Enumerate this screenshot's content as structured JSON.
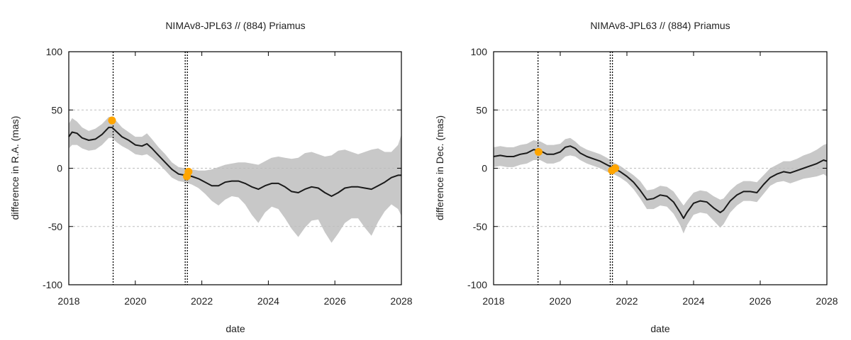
{
  "colors": {
    "line": "#1a1a1a",
    "band": "#c8c8c8",
    "points": "#ffa500",
    "grid": "#bdbdbd",
    "axis": "#000000"
  },
  "chart_data": [
    {
      "type": "line",
      "title": "NIMAv8-JPL63 // (884) Priamus",
      "xlabel": "date",
      "ylabel": "difference in R.A. (mas)",
      "xlim": [
        "2018-01-01",
        "2028-01-01"
      ],
      "ylim": [
        -100,
        100
      ],
      "xticks": [
        "2018",
        "2020",
        "2022",
        "2024",
        "2026",
        "2028"
      ],
      "yticks": [
        "-100",
        "-50",
        "0",
        "50",
        "100"
      ],
      "grid": true,
      "vlines": [
        "2019-05-01",
        "2021-07-01",
        "2021-07-25"
      ],
      "series": [
        {
          "kind": "line",
          "x": [
            "2018.0",
            "2018.1",
            "2018.25",
            "2018.4",
            "2018.6",
            "2018.8",
            "2019.0",
            "2019.2",
            "2019.3",
            "2019.45",
            "2019.6",
            "2019.8",
            "2020.0",
            "2020.2",
            "2020.35",
            "2020.5",
            "2020.7",
            "2020.9",
            "2021.1",
            "2021.3",
            "2021.5",
            "2021.7",
            "2021.9",
            "2022.1",
            "2022.3",
            "2022.5",
            "2022.7",
            "2022.9",
            "2023.1",
            "2023.3",
            "2023.5",
            "2023.7",
            "2023.9",
            "2024.1",
            "2024.3",
            "2024.5",
            "2024.7",
            "2024.9",
            "2025.1",
            "2025.3",
            "2025.5",
            "2025.7",
            "2025.9",
            "2026.1",
            "2026.3",
            "2026.5",
            "2026.7",
            "2026.9",
            "2027.1",
            "2027.3",
            "2027.5",
            "2027.7",
            "2027.9",
            "2028.0"
          ],
          "y": [
            27,
            31,
            30,
            26,
            24,
            25,
            29,
            35,
            35,
            31,
            27,
            24,
            20,
            19,
            21,
            17,
            11,
            5,
            -1,
            -5,
            -6,
            -7,
            -9,
            -12,
            -15,
            -15,
            -12,
            -11,
            -11,
            -13,
            -16,
            -18,
            -15,
            -13,
            -13,
            -16,
            -20,
            -21,
            -18,
            -16,
            -17,
            -21,
            -24,
            -21,
            -17,
            -16,
            -16,
            -17,
            -18,
            -15,
            -12,
            -8,
            -6,
            -6
          ]
        },
        {
          "kind": "band",
          "x": [
            "2018.0",
            "2018.1",
            "2018.25",
            "2018.4",
            "2018.6",
            "2018.8",
            "2019.0",
            "2019.2",
            "2019.3",
            "2019.45",
            "2019.6",
            "2019.8",
            "2020.0",
            "2020.2",
            "2020.35",
            "2020.5",
            "2020.7",
            "2020.9",
            "2021.1",
            "2021.3",
            "2021.5",
            "2021.7",
            "2021.9",
            "2022.1",
            "2022.3",
            "2022.5",
            "2022.7",
            "2022.9",
            "2023.1",
            "2023.3",
            "2023.5",
            "2023.7",
            "2023.9",
            "2024.1",
            "2024.3",
            "2024.5",
            "2024.7",
            "2024.9",
            "2025.1",
            "2025.3",
            "2025.5",
            "2025.7",
            "2025.9",
            "2026.1",
            "2026.3",
            "2026.5",
            "2026.7",
            "2026.9",
            "2027.1",
            "2027.3",
            "2027.5",
            "2027.7",
            "2027.9",
            "2028.0"
          ],
          "upper": [
            38,
            43,
            40,
            35,
            32,
            34,
            38,
            44,
            44,
            40,
            35,
            31,
            27,
            27,
            30,
            25,
            18,
            12,
            5,
            1,
            0,
            -1,
            -2,
            -2,
            -1,
            1,
            3,
            4,
            5,
            5,
            4,
            3,
            6,
            9,
            10,
            9,
            8,
            9,
            13,
            14,
            12,
            10,
            11,
            15,
            16,
            14,
            12,
            14,
            16,
            17,
            14,
            14,
            20,
            29
          ],
          "lower": [
            17,
            20,
            20,
            17,
            15,
            16,
            20,
            26,
            26,
            22,
            19,
            16,
            12,
            11,
            12,
            9,
            4,
            -2,
            -8,
            -11,
            -12,
            -14,
            -17,
            -22,
            -28,
            -32,
            -27,
            -24,
            -25,
            -31,
            -40,
            -47,
            -38,
            -33,
            -35,
            -43,
            -52,
            -59,
            -51,
            -45,
            -44,
            -55,
            -64,
            -56,
            -47,
            -43,
            -43,
            -51,
            -58,
            -46,
            -37,
            -31,
            -35,
            -41
          ]
        },
        {
          "kind": "points",
          "x": [
            "2019.3",
            "2021.55",
            "2021.6"
          ],
          "y": [
            41,
            -7,
            -3
          ]
        }
      ]
    },
    {
      "type": "line",
      "title": "NIMAv8-JPL63 // (884) Priamus",
      "xlabel": "date",
      "ylabel": "difference in Dec. (mas)",
      "xlim": [
        "2018-01-01",
        "2028-01-01"
      ],
      "ylim": [
        -100,
        100
      ],
      "xticks": [
        "2018",
        "2020",
        "2022",
        "2024",
        "2026",
        "2028"
      ],
      "yticks": [
        "-100",
        "-50",
        "0",
        "50",
        "100"
      ],
      "grid": true,
      "vlines": [
        "2019-05-01",
        "2021-07-01",
        "2021-07-25"
      ],
      "series": [
        {
          "kind": "line",
          "x": [
            "2018.0",
            "2018.2",
            "2018.4",
            "2018.6",
            "2018.8",
            "2019.0",
            "2019.2",
            "2019.4",
            "2019.6",
            "2019.8",
            "2020.0",
            "2020.15",
            "2020.3",
            "2020.45",
            "2020.6",
            "2020.8",
            "2021.0",
            "2021.2",
            "2021.4",
            "2021.6",
            "2021.8",
            "2022.0",
            "2022.2",
            "2022.4",
            "2022.6",
            "2022.8",
            "2023.0",
            "2023.2",
            "2023.4",
            "2023.6",
            "2023.7",
            "2023.8",
            "2024.0",
            "2024.2",
            "2024.4",
            "2024.6",
            "2024.8",
            "2024.9",
            "2025.1",
            "2025.3",
            "2025.5",
            "2025.7",
            "2025.9",
            "2026.1",
            "2026.3",
            "2026.5",
            "2026.7",
            "2026.9",
            "2027.1",
            "2027.3",
            "2027.5",
            "2027.7",
            "2027.9",
            "2028.0"
          ],
          "y": [
            10,
            11,
            10,
            10,
            12,
            13,
            16,
            15,
            12,
            12,
            14,
            18,
            19,
            17,
            13,
            10,
            8,
            6,
            3,
            0,
            -3,
            -7,
            -12,
            -19,
            -27,
            -26,
            -23,
            -24,
            -29,
            -38,
            -43,
            -38,
            -30,
            -28,
            -29,
            -34,
            -38,
            -36,
            -28,
            -23,
            -20,
            -20,
            -21,
            -14,
            -8,
            -5,
            -3,
            -4,
            -2,
            0,
            2,
            4,
            7,
            6
          ]
        },
        {
          "kind": "band",
          "x": [
            "2018.0",
            "2018.2",
            "2018.4",
            "2018.6",
            "2018.8",
            "2019.0",
            "2019.2",
            "2019.4",
            "2019.6",
            "2019.8",
            "2020.0",
            "2020.15",
            "2020.3",
            "2020.45",
            "2020.6",
            "2020.8",
            "2021.0",
            "2021.2",
            "2021.4",
            "2021.6",
            "2021.8",
            "2022.0",
            "2022.2",
            "2022.4",
            "2022.6",
            "2022.8",
            "2023.0",
            "2023.2",
            "2023.4",
            "2023.6",
            "2023.7",
            "2023.8",
            "2024.0",
            "2024.2",
            "2024.4",
            "2024.6",
            "2024.8",
            "2024.9",
            "2025.1",
            "2025.3",
            "2025.5",
            "2025.7",
            "2025.9",
            "2026.1",
            "2026.3",
            "2026.5",
            "2026.7",
            "2026.9",
            "2027.1",
            "2027.3",
            "2027.5",
            "2027.7",
            "2027.9",
            "2028.0"
          ],
          "upper": [
            18,
            19,
            18,
            18,
            20,
            21,
            24,
            23,
            20,
            20,
            21,
            25,
            26,
            23,
            19,
            16,
            14,
            12,
            9,
            5,
            2,
            -2,
            -6,
            -11,
            -19,
            -18,
            -15,
            -16,
            -20,
            -28,
            -32,
            -28,
            -21,
            -19,
            -20,
            -24,
            -27,
            -26,
            -19,
            -14,
            -11,
            -11,
            -12,
            -6,
            0,
            3,
            6,
            6,
            8,
            11,
            13,
            16,
            20,
            21
          ],
          "lower": [
            1,
            2,
            1,
            1,
            3,
            4,
            7,
            7,
            4,
            4,
            6,
            10,
            11,
            10,
            7,
            4,
            2,
            0,
            -3,
            -5,
            -8,
            -12,
            -18,
            -26,
            -35,
            -35,
            -32,
            -33,
            -39,
            -49,
            -56,
            -49,
            -40,
            -38,
            -39,
            -45,
            -51,
            -48,
            -38,
            -32,
            -28,
            -28,
            -29,
            -22,
            -15,
            -12,
            -11,
            -13,
            -11,
            -9,
            -8,
            -7,
            -5,
            -7
          ]
        },
        {
          "kind": "points",
          "x": [
            "2019.35",
            "2021.55",
            "2021.65"
          ],
          "y": [
            14,
            -2,
            0
          ]
        }
      ]
    }
  ]
}
